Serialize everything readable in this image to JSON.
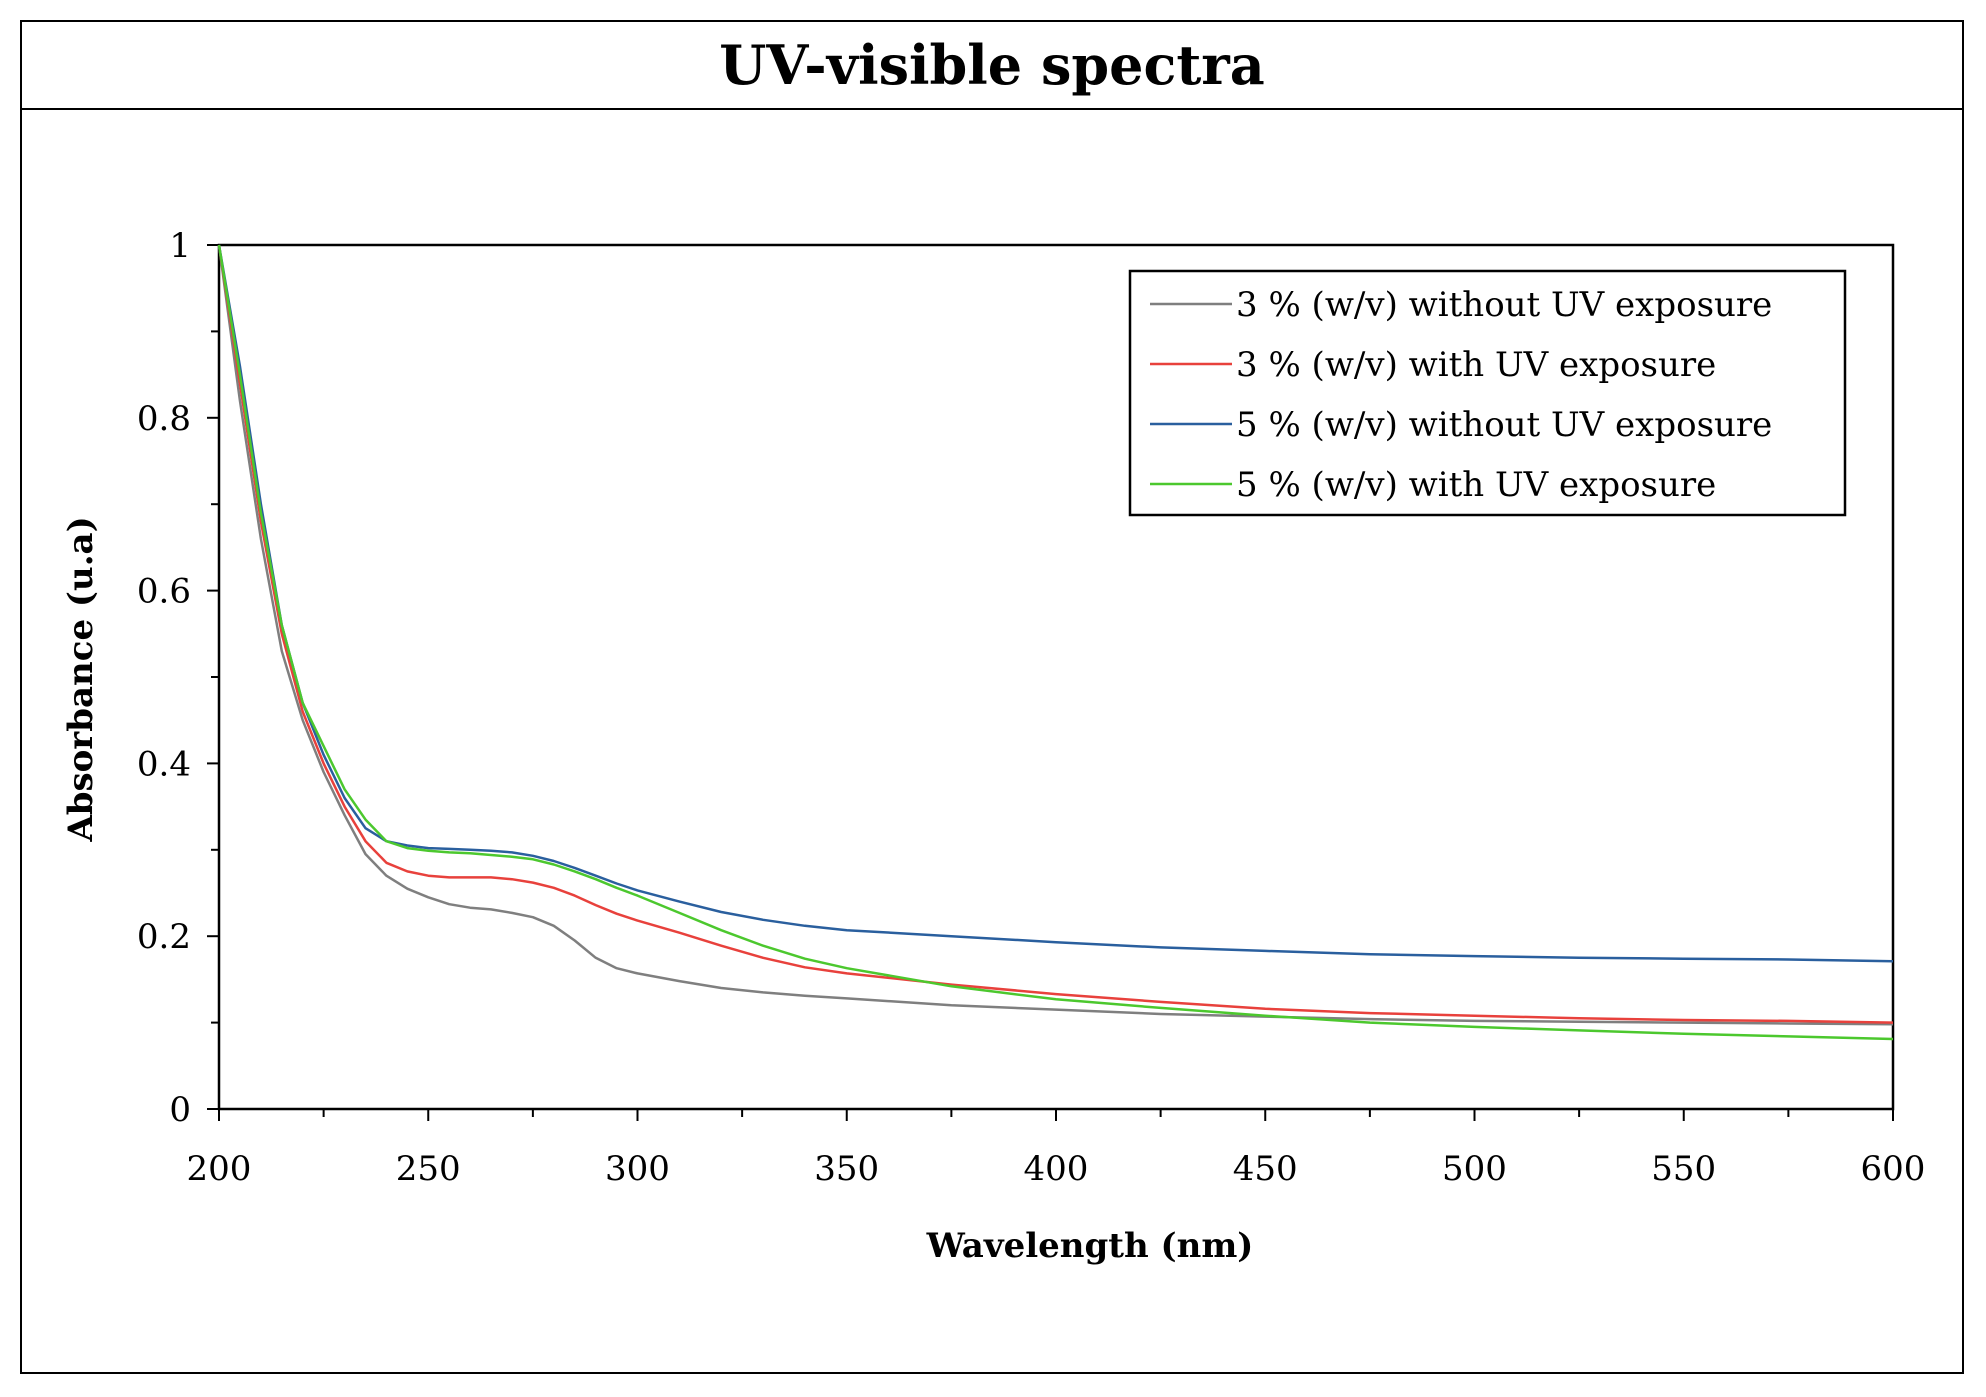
{
  "chart_data": {
    "type": "line",
    "title": "UV-visible spectra",
    "xlabel": "Wavelength (nm)",
    "ylabel": "Absorbance (u.a)",
    "xlim": [
      200,
      600
    ],
    "ylim": [
      0,
      1
    ],
    "xticks": [
      200,
      250,
      300,
      350,
      400,
      450,
      500,
      550,
      600
    ],
    "yticks": [
      0,
      0.2,
      0.4,
      0.6,
      0.8,
      1
    ],
    "ytick_labels": [
      "0",
      "0.2",
      "0.4",
      "0.6",
      "0.8",
      "1"
    ],
    "legend_position": "top-right",
    "series": [
      {
        "name": "3 % (w/v) without UV exposure",
        "color": "#7f7f7f",
        "x": [
          200,
          205,
          210,
          215,
          220,
          225,
          230,
          235,
          240,
          245,
          250,
          255,
          260,
          265,
          270,
          275,
          280,
          285,
          290,
          295,
          300,
          310,
          320,
          330,
          340,
          350,
          375,
          400,
          425,
          450,
          475,
          500,
          525,
          550,
          575,
          600
        ],
        "y": [
          1.0,
          0.82,
          0.66,
          0.53,
          0.45,
          0.39,
          0.34,
          0.295,
          0.27,
          0.255,
          0.245,
          0.237,
          0.233,
          0.231,
          0.227,
          0.222,
          0.212,
          0.195,
          0.175,
          0.163,
          0.157,
          0.148,
          0.14,
          0.135,
          0.131,
          0.128,
          0.12,
          0.115,
          0.11,
          0.107,
          0.104,
          0.102,
          0.101,
          0.1,
          0.099,
          0.098
        ]
      },
      {
        "name": "3 % (w/v) with UV exposure",
        "color": "#e8413c",
        "x": [
          200,
          205,
          210,
          215,
          220,
          225,
          230,
          235,
          240,
          245,
          250,
          255,
          260,
          265,
          270,
          275,
          280,
          285,
          290,
          295,
          300,
          310,
          320,
          330,
          340,
          350,
          375,
          400,
          425,
          450,
          475,
          500,
          525,
          550,
          575,
          600
        ],
        "y": [
          1.0,
          0.84,
          0.68,
          0.55,
          0.46,
          0.4,
          0.35,
          0.31,
          0.285,
          0.275,
          0.27,
          0.268,
          0.268,
          0.268,
          0.266,
          0.262,
          0.256,
          0.247,
          0.236,
          0.226,
          0.218,
          0.204,
          0.189,
          0.175,
          0.164,
          0.157,
          0.144,
          0.133,
          0.124,
          0.116,
          0.111,
          0.108,
          0.105,
          0.103,
          0.102,
          0.1
        ]
      },
      {
        "name": "5 % (w/v) without UV exposure",
        "color": "#2a5f9e",
        "x": [
          200,
          205,
          210,
          215,
          220,
          225,
          230,
          235,
          240,
          245,
          250,
          255,
          260,
          265,
          270,
          275,
          280,
          285,
          290,
          295,
          300,
          310,
          320,
          330,
          340,
          350,
          375,
          400,
          425,
          450,
          475,
          500,
          525,
          550,
          575,
          600
        ],
        "y": [
          1.0,
          0.86,
          0.7,
          0.56,
          0.47,
          0.41,
          0.36,
          0.325,
          0.31,
          0.305,
          0.302,
          0.301,
          0.3,
          0.299,
          0.297,
          0.293,
          0.287,
          0.279,
          0.27,
          0.261,
          0.253,
          0.24,
          0.228,
          0.219,
          0.212,
          0.207,
          0.2,
          0.193,
          0.187,
          0.183,
          0.179,
          0.177,
          0.175,
          0.174,
          0.173,
          0.171
        ]
      },
      {
        "name": "5 % (w/v) with UV exposure",
        "color": "#4cc82e",
        "x": [
          200,
          205,
          210,
          215,
          220,
          225,
          230,
          235,
          240,
          245,
          250,
          255,
          260,
          265,
          270,
          275,
          280,
          285,
          290,
          295,
          300,
          310,
          320,
          330,
          340,
          350,
          375,
          400,
          425,
          450,
          475,
          500,
          525,
          550,
          575,
          600
        ],
        "y": [
          1.0,
          0.85,
          0.69,
          0.56,
          0.47,
          0.42,
          0.37,
          0.335,
          0.31,
          0.302,
          0.299,
          0.297,
          0.296,
          0.294,
          0.292,
          0.289,
          0.283,
          0.275,
          0.266,
          0.256,
          0.247,
          0.227,
          0.207,
          0.189,
          0.174,
          0.163,
          0.142,
          0.127,
          0.117,
          0.108,
          0.1,
          0.095,
          0.091,
          0.087,
          0.084,
          0.081
        ]
      }
    ]
  }
}
